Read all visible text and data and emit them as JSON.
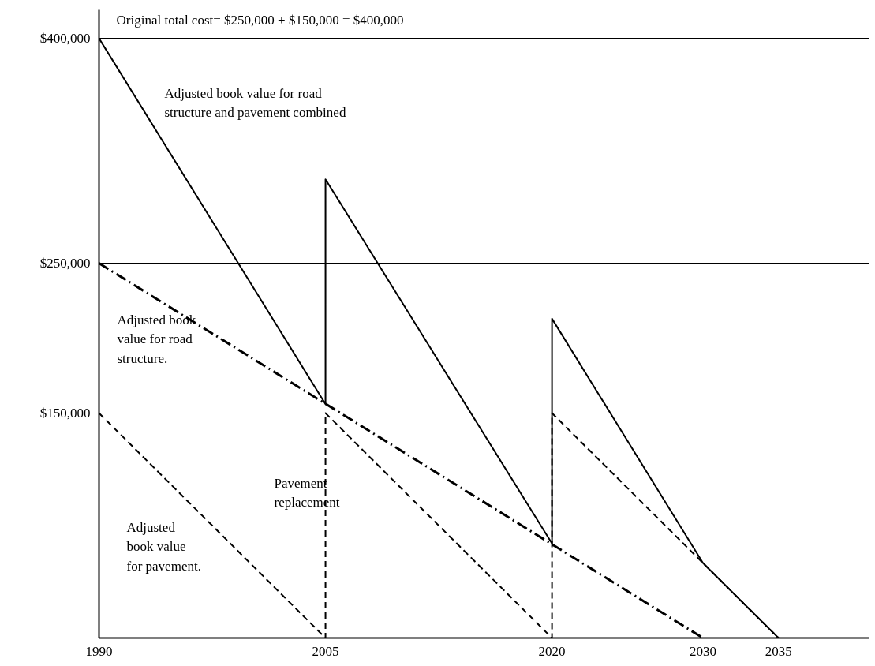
{
  "chart_data": {
    "type": "line",
    "x": [
      1990,
      2005,
      2005,
      2020,
      2020,
      2030,
      2035
    ],
    "series": [
      {
        "color": "#000000",
        "line_style": "solid",
        "values": [
          400000,
          156000,
          306000,
          63000,
          213000,
          50000,
          0
        ]
      },
      {
        "color": "#000000",
        "line_style": "dashdot",
        "x": [
          1990,
          2030
        ],
        "values": [
          250000,
          0
        ]
      },
      {
        "color": "#000000",
        "line_style": "dashed",
        "x": [
          1990,
          2005,
          2005,
          2020,
          2020,
          2035
        ],
        "values": [
          150000,
          0,
          150000,
          0,
          150000,
          0
        ]
      }
    ],
    "xlim": [
      1990,
      2041
    ],
    "ylim": [
      0,
      419000
    ],
    "xticks": [
      1990,
      2005,
      2020,
      2030,
      2035
    ],
    "yticks": [
      {
        "value": 150000,
        "label": "$150,000"
      },
      {
        "value": 250000,
        "label": "$250,000"
      },
      {
        "value": 400000,
        "label": "$400,000"
      }
    ],
    "grid": "y",
    "annotations": [
      "Original total cost= $250,000 + $150,000 = $400,000",
      "Adjusted book value for road\nstructure and pavement combined",
      "Adjusted book\nvalue for road\nstructure.",
      "Pavement\nreplacement",
      "Adjusted\nbook value\nfor pavement."
    ]
  }
}
